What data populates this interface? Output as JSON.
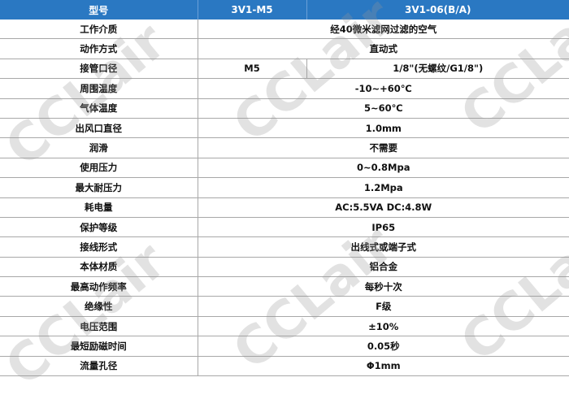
{
  "header": {
    "col1": "型号",
    "col2": "3V1-M5",
    "col3": "3V1-06(B/A)"
  },
  "rows": [
    {
      "label": "工作介质",
      "value": "经40微米滤网过滤的空气"
    },
    {
      "label": "动作方式",
      "value": "直动式"
    },
    {
      "label": "接管口径",
      "value_m5": "M5",
      "value_06": "1/8\"(无螺纹/G1/8\")"
    },
    {
      "label": "周围温度",
      "value": "-10~+60℃"
    },
    {
      "label": "气体温度",
      "value": "5~60℃"
    },
    {
      "label": "出风口直径",
      "value": "1.0mm"
    },
    {
      "label": "润滑",
      "value": "不需要"
    },
    {
      "label": "使用压力",
      "value": "0~0.8Mpa"
    },
    {
      "label": "最大耐压力",
      "value": "1.2Mpa"
    },
    {
      "label": "耗电量",
      "value": "AC:5.5VA DC:4.8W"
    },
    {
      "label": "保护等级",
      "value": "IP65"
    },
    {
      "label": "接线形式",
      "value": "出线式或端子式"
    },
    {
      "label": "本体材质",
      "value": "铝合金"
    },
    {
      "label": "最高动作频率",
      "value": "每秒十次"
    },
    {
      "label": "绝缘性",
      "value": "F级"
    },
    {
      "label": "电压范围",
      "value": "±10%"
    },
    {
      "label": "最短励磁时间",
      "value": "0.05秒"
    },
    {
      "label": "流量孔径",
      "value": "Φ1mm"
    }
  ],
  "watermark": "CCLair",
  "colors": {
    "header_bg": "#2a78c2",
    "header_text": "#ffffff"
  }
}
